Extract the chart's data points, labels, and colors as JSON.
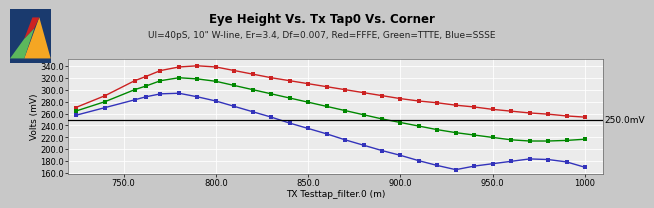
{
  "title": "Eye Height Vs. Tx Tap0 Vs. Corner",
  "subtitle": "UI=40pS, 10\" W-line, Er=3.4, Df=0.007, Red=FFFE, Green=TTTE, Blue=SSSE",
  "xlabel": "TX Testtap_filter.0 (m)",
  "ylabel": "Volts (mV)",
  "xlim": [
    720,
    1010
  ],
  "ylim": [
    158,
    352
  ],
  "yticks": [
    160,
    180,
    200,
    220,
    240,
    260,
    280,
    300,
    320,
    340
  ],
  "xticks": [
    750.0,
    800.0,
    850.0,
    900.0,
    950.0,
    1000.0
  ],
  "hline_y": 250.0,
  "hline_label": "250.0mV",
  "red_x": [
    724,
    740,
    756,
    762,
    770,
    780,
    790,
    800,
    810,
    820,
    830,
    840,
    850,
    860,
    870,
    880,
    890,
    900,
    910,
    920,
    930,
    940,
    950,
    960,
    970,
    980,
    990,
    1000
  ],
  "red_y": [
    270,
    290,
    315,
    322,
    332,
    338,
    340,
    338,
    332,
    326,
    320,
    315,
    310,
    305,
    300,
    295,
    290,
    285,
    281,
    278,
    274,
    271,
    267,
    264,
    261,
    259,
    256,
    254
  ],
  "green_x": [
    724,
    740,
    756,
    762,
    770,
    780,
    790,
    800,
    810,
    820,
    830,
    840,
    850,
    860,
    870,
    880,
    890,
    900,
    910,
    920,
    930,
    940,
    950,
    960,
    970,
    980,
    990,
    1000
  ],
  "green_y": [
    264,
    280,
    300,
    306,
    315,
    320,
    318,
    314,
    307,
    300,
    293,
    286,
    279,
    272,
    265,
    258,
    251,
    245,
    239,
    233,
    228,
    224,
    220,
    216,
    214,
    214,
    215,
    217
  ],
  "blue_x": [
    724,
    740,
    756,
    762,
    770,
    780,
    790,
    800,
    810,
    820,
    830,
    840,
    850,
    860,
    870,
    880,
    890,
    900,
    910,
    920,
    930,
    940,
    950,
    960,
    970,
    980,
    990,
    1000
  ],
  "blue_y": [
    257,
    270,
    283,
    288,
    293,
    294,
    288,
    281,
    272,
    263,
    254,
    244,
    235,
    226,
    216,
    207,
    198,
    190,
    181,
    173,
    166,
    172,
    176,
    180,
    184,
    183,
    179,
    170
  ],
  "red_color": "#CC2222",
  "green_color": "#008800",
  "blue_color": "#3333BB",
  "bg_color": "#c8c8c8",
  "plot_bg": "#ebebeb",
  "grid_color": "#ffffff",
  "marker": "s",
  "marker_size": 3,
  "line_width": 1.0,
  "title_fontsize": 8.5,
  "subtitle_fontsize": 6.5,
  "axis_label_fontsize": 6.5,
  "tick_fontsize": 6.0,
  "hline_fontsize": 6.5
}
